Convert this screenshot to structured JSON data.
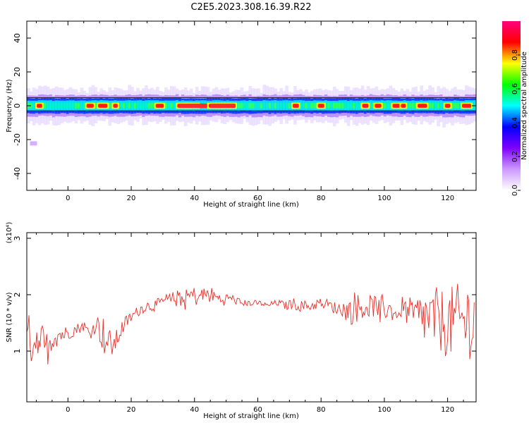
{
  "title": "C2E5.2023.308.16.39.R22",
  "colorbar": {
    "label": "Normalized spectral amplitude",
    "ticks": [
      "0.0",
      "0.2",
      "0.4",
      "0.6",
      "0.8"
    ],
    "tick_values": [
      0.0,
      0.2,
      0.4,
      0.6,
      0.8
    ],
    "range": [
      0,
      1
    ],
    "colormap": [
      "#ffffff",
      "#cc99ff",
      "#7f00ff",
      "#0000ff",
      "#00ffff",
      "#00ff00",
      "#ffff00",
      "#ff0000",
      "#ff0080"
    ]
  },
  "chart_data": [
    {
      "type": "heatmap",
      "title": "C2E5.2023.308.16.39.R22",
      "xlabel": "Height of straight line (km)",
      "ylabel": "Frequency (Hz)",
      "xlim": [
        -13,
        129
      ],
      "ylim": [
        -50,
        50
      ],
      "xticks": [
        0,
        20,
        40,
        60,
        80,
        100,
        120
      ],
      "yticks": [
        -40,
        -20,
        0,
        20,
        40
      ],
      "xtick_labels": [
        "0",
        "20",
        "40",
        "60",
        "80",
        "100",
        "120"
      ],
      "ytick_labels": [
        "-40",
        "-20",
        "0",
        "20",
        "40"
      ],
      "band_center_hz": 0,
      "band_halfwidth_hz": 5,
      "hot_spots_km": [
        -9,
        7,
        11,
        15,
        29,
        36,
        38,
        40,
        46,
        48,
        50,
        52,
        72,
        80,
        94,
        98,
        104,
        106,
        112,
        120,
        126
      ]
    },
    {
      "type": "line",
      "xlabel": "Height of straight line (km)",
      "ylabel": "SNR (10 * v/v)",
      "y_scale_label": "(x10⁴)",
      "xlim": [
        -13,
        129
      ],
      "ylim": [
        0.1,
        3.1
      ],
      "xticks": [
        0,
        20,
        40,
        60,
        80,
        100,
        120
      ],
      "yticks": [
        1,
        2,
        3
      ],
      "xtick_labels": [
        "0",
        "20",
        "40",
        "60",
        "80",
        "100",
        "120"
      ],
      "ytick_labels": [
        "1",
        "2",
        "3"
      ],
      "color": "#e8302a",
      "x": [
        -13,
        -11,
        -9,
        -7,
        -5,
        -3,
        -1,
        1,
        3,
        5,
        7,
        9,
        11,
        13,
        15,
        17,
        19,
        21,
        23,
        25,
        27,
        29,
        31,
        33,
        35,
        37,
        39,
        41,
        43,
        45,
        47,
        49,
        51,
        53,
        55,
        57,
        59,
        61,
        63,
        65,
        67,
        69,
        71,
        73,
        75,
        77,
        79,
        81,
        83,
        85,
        87,
        89,
        91,
        93,
        95,
        97,
        99,
        101,
        103,
        105,
        107,
        109,
        111,
        113,
        115,
        117,
        119,
        121,
        123,
        125,
        127,
        128
      ],
      "y": [
        1.1,
        1.3,
        1.2,
        1.0,
        1.25,
        1.3,
        1.3,
        1.35,
        1.4,
        1.45,
        1.3,
        1.5,
        1.3,
        1.1,
        1.15,
        1.4,
        1.55,
        1.65,
        1.75,
        1.8,
        1.8,
        1.85,
        1.9,
        1.9,
        1.95,
        1.9,
        2.0,
        1.95,
        2.0,
        2.0,
        1.95,
        1.9,
        1.95,
        1.9,
        1.85,
        1.85,
        1.85,
        1.85,
        1.8,
        1.85,
        1.85,
        1.8,
        1.85,
        1.8,
        1.8,
        1.8,
        1.85,
        1.85,
        1.8,
        1.75,
        1.75,
        1.7,
        1.8,
        1.75,
        1.8,
        1.8,
        1.75,
        1.75,
        1.7,
        1.8,
        1.7,
        1.6,
        1.6,
        1.6,
        1.55,
        1.55,
        1.5,
        1.5,
        1.55,
        1.5,
        1.6,
        1.5
      ],
      "noise": [
        0.5,
        0.5,
        0.45,
        0.35,
        0.25,
        0.2,
        0.15,
        0.12,
        0.1,
        0.1,
        0.1,
        0.15,
        0.35,
        0.3,
        0.2,
        0.15,
        0.12,
        0.1,
        0.1,
        0.1,
        0.1,
        0.1,
        0.12,
        0.15,
        0.15,
        0.18,
        0.18,
        0.15,
        0.15,
        0.15,
        0.12,
        0.1,
        0.1,
        0.08,
        0.06,
        0.05,
        0.05,
        0.05,
        0.05,
        0.05,
        0.06,
        0.08,
        0.1,
        0.1,
        0.1,
        0.1,
        0.1,
        0.1,
        0.1,
        0.12,
        0.15,
        0.25,
        0.3,
        0.25,
        0.2,
        0.2,
        0.2,
        0.2,
        0.2,
        0.2,
        0.25,
        0.35,
        0.45,
        0.5,
        0.55,
        0.6,
        0.6,
        0.65,
        0.65,
        0.7,
        0.75,
        0.75
      ]
    }
  ]
}
